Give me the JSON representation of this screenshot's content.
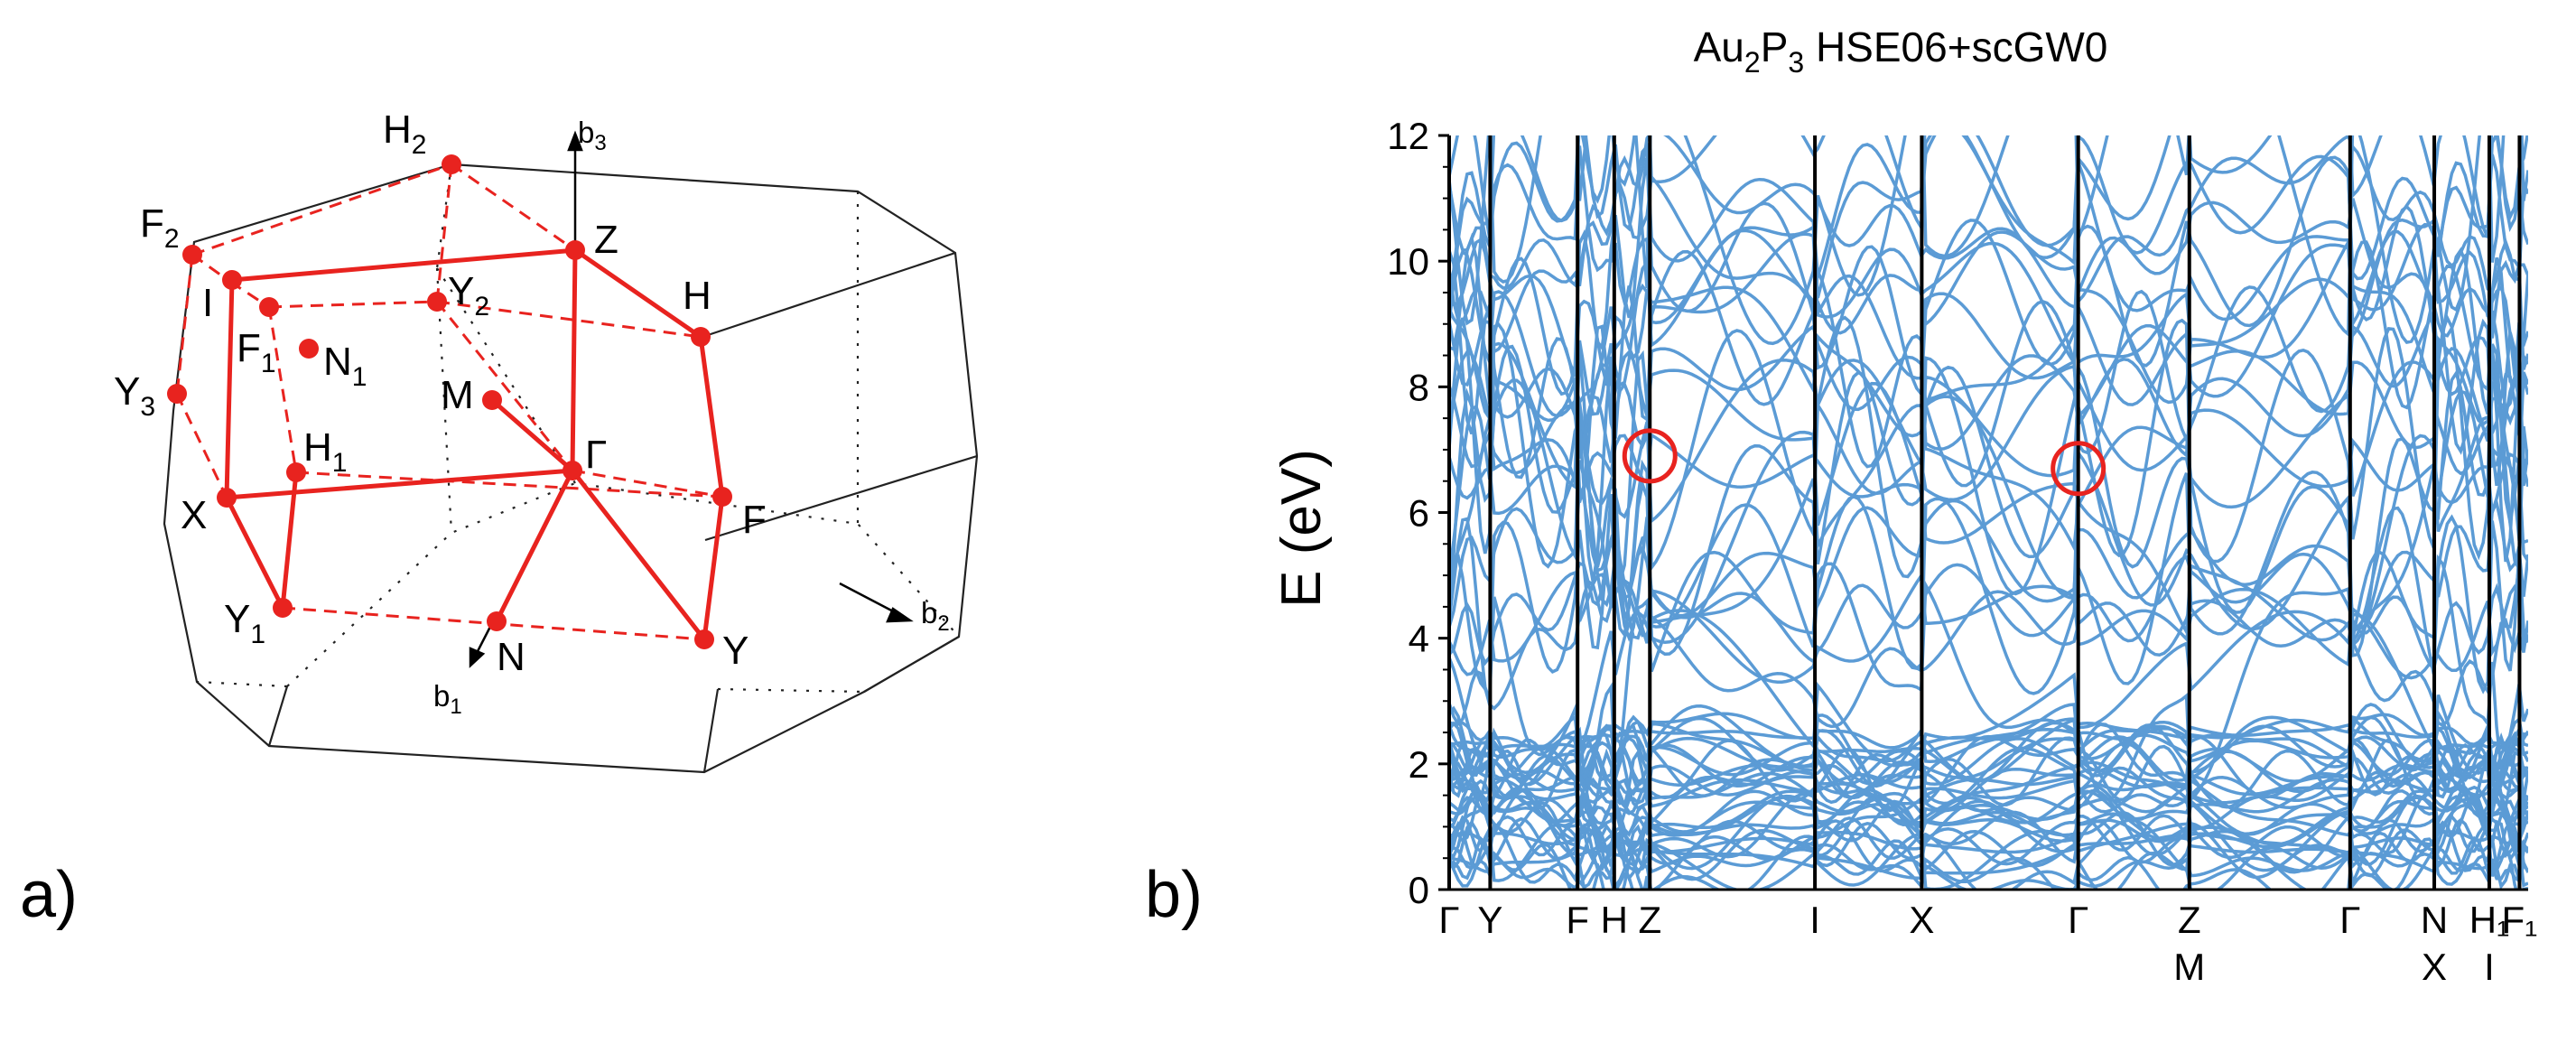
{
  "panel_a": {
    "label": "a)",
    "points": [
      {
        "id": "H2",
        "label": "H",
        "sub": "2"
      },
      {
        "id": "F2",
        "label": "F",
        "sub": "2"
      },
      {
        "id": "I",
        "label": "I",
        "sub": ""
      },
      {
        "id": "Z",
        "label": "Z",
        "sub": ""
      },
      {
        "id": "F1",
        "label": "F",
        "sub": "1"
      },
      {
        "id": "Y2",
        "label": "Y",
        "sub": "2"
      },
      {
        "id": "H",
        "label": "H",
        "sub": ""
      },
      {
        "id": "N1",
        "label": "N",
        "sub": "1"
      },
      {
        "id": "Y3",
        "label": "Y",
        "sub": "3"
      },
      {
        "id": "M",
        "label": "M",
        "sub": ""
      },
      {
        "id": "H1",
        "label": "H",
        "sub": "1"
      },
      {
        "id": "Gamma",
        "label": "Γ",
        "sub": ""
      },
      {
        "id": "X",
        "label": "X",
        "sub": ""
      },
      {
        "id": "F",
        "label": "F",
        "sub": ""
      },
      {
        "id": "Y1",
        "label": "Y",
        "sub": "1"
      },
      {
        "id": "N",
        "label": "N",
        "sub": ""
      },
      {
        "id": "Y",
        "label": "Y",
        "sub": ""
      }
    ],
    "axes": [
      {
        "id": "b3",
        "label": "b",
        "sub": "3"
      },
      {
        "id": "b2",
        "label": "b",
        "sub": "2"
      },
      {
        "id": "b1",
        "label": "b",
        "sub": "1"
      }
    ],
    "colors": {
      "path": "#e8231f",
      "edge": "#222222"
    }
  },
  "panel_b": {
    "label": "b)",
    "title_main": "Au",
    "title_sub1": "2",
    "title_mid": "P",
    "title_sub2": "3",
    "title_rest": " HSE06+scGW0",
    "colors": {
      "band": "#5b9bd5",
      "circle": "#e8231f",
      "line": "#000000"
    }
  },
  "chart_data": {
    "type": "line",
    "title": "Au2P3 HSE06+scGW0",
    "xlabel": "",
    "ylabel": "E (eV)",
    "ylim": [
      0,
      12
    ],
    "yticks": [
      0,
      2,
      4,
      6,
      8,
      10,
      12
    ],
    "x_range": [
      0,
      100
    ],
    "kpoints": [
      {
        "label": "Γ",
        "label2": "",
        "x": 0
      },
      {
        "label": "Y",
        "label2": "",
        "x": 3.8
      },
      {
        "label": "F",
        "label2": "",
        "x": 11.9
      },
      {
        "label": "H",
        "label2": "",
        "x": 15.3
      },
      {
        "label": "Z",
        "label2": "",
        "x": 18.6
      },
      {
        "label": "I",
        "label2": "",
        "x": 33.9
      },
      {
        "label": "X",
        "label2": "",
        "x": 43.8
      },
      {
        "label": "Γ",
        "label2": "",
        "x": 58.3
      },
      {
        "label": "Z",
        "label2": "M",
        "x": 68.6
      },
      {
        "label": "Γ",
        "label2": "",
        "x": 83.5
      },
      {
        "label": "N",
        "label2": "X",
        "x": 91.3
      },
      {
        "label": "H₁",
        "label2": "I",
        "x": 96.4
      },
      {
        "label": "F₁",
        "label2": "",
        "x": 99.2
      }
    ],
    "annotations": [
      {
        "type": "circle",
        "x": 18.6,
        "y": 6.9
      },
      {
        "type": "circle",
        "x": 58.3,
        "y": 6.7
      }
    ],
    "series_note": "electronic band structure: many blue band curves, dense manifold 0-2.6 eV, sparser bands 3-12 eV"
  }
}
